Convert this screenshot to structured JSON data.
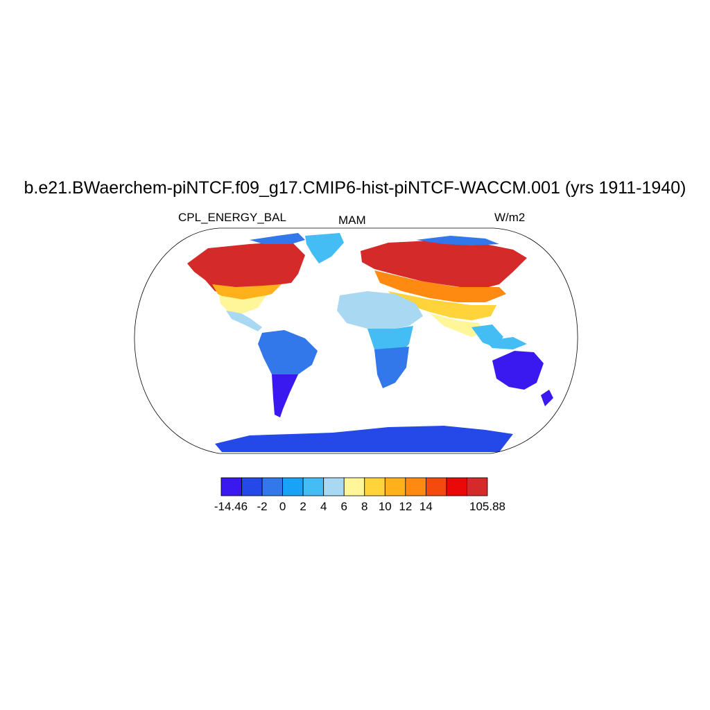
{
  "title": "b.e21.BWaerchem-piNTCF.f09_g17.CMIP6-hist-piNTCF-WACCM.001 (yrs 1911-1940)",
  "variable": "CPL_ENERGY_BAL",
  "season": "MAM",
  "units": "W/m2",
  "colorbar": {
    "colors": [
      "#3a18f0",
      "#2548e8",
      "#3278ea",
      "#18a2f8",
      "#44bcf4",
      "#a8d8f2",
      "#fff69a",
      "#ffd33a",
      "#ffb11c",
      "#ff8a12",
      "#f54a0e",
      "#ea0808",
      "#d42a2a"
    ],
    "labels": [
      "-14.46",
      "-2",
      "0",
      "2",
      "4",
      "6",
      "8",
      "10",
      "12",
      "14",
      "105.88"
    ]
  }
}
